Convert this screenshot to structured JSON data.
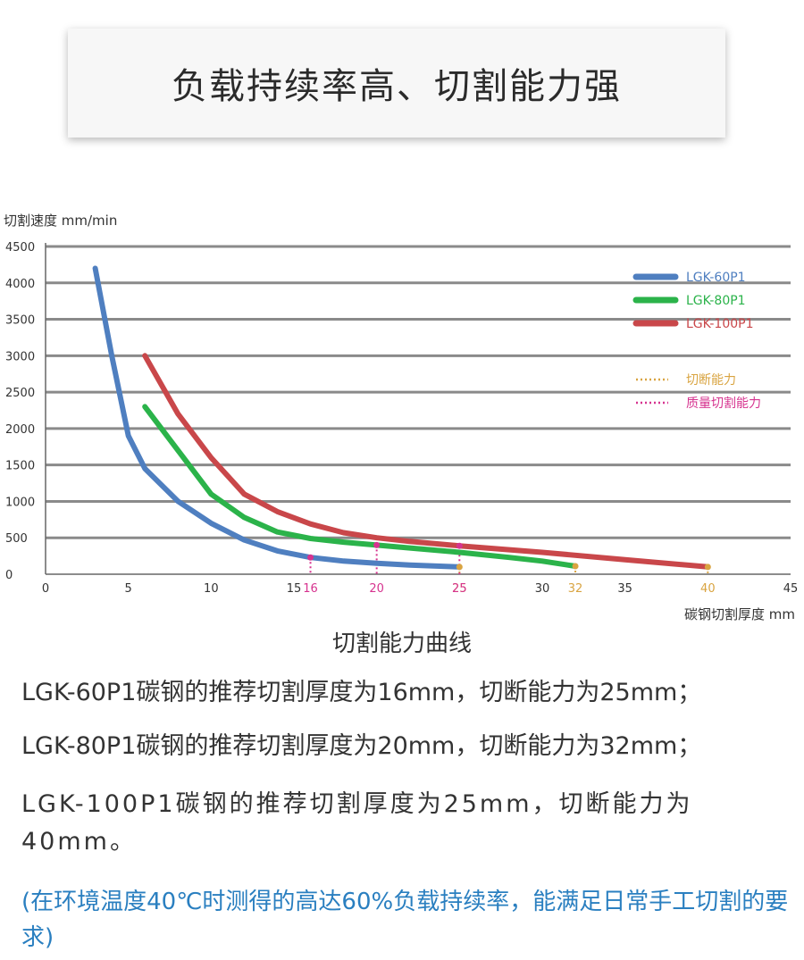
{
  "page_title": "负载持续率高、切割能力强",
  "chart_data": {
    "type": "line",
    "title": "切割能力曲线",
    "xlabel": "碳钢切割厚度 mm",
    "ylabel": "切割速度 mm/min",
    "xlim": [
      0,
      45
    ],
    "ylim": [
      0,
      4500
    ],
    "x_ticks": [
      0,
      5,
      10,
      15,
      30,
      35,
      45
    ],
    "y_ticks": [
      0,
      500,
      1000,
      1500,
      2000,
      2500,
      3000,
      3500,
      4000,
      4500
    ],
    "grid": "horizontal",
    "legend_position": "top-right",
    "series": [
      {
        "name": "LGK-60P1",
        "color": "#4f7fc0",
        "points": [
          [
            3,
            4200
          ],
          [
            4,
            3000
          ],
          [
            5,
            1900
          ],
          [
            6,
            1450
          ],
          [
            8,
            1000
          ],
          [
            10,
            700
          ],
          [
            12,
            470
          ],
          [
            14,
            320
          ],
          [
            16,
            230
          ],
          [
            18,
            180
          ],
          [
            20,
            150
          ],
          [
            22,
            125
          ],
          [
            25,
            100
          ]
        ]
      },
      {
        "name": "LGK-80P1",
        "color": "#2bb34a",
        "points": [
          [
            6,
            2300
          ],
          [
            8,
            1700
          ],
          [
            10,
            1100
          ],
          [
            12,
            780
          ],
          [
            14,
            580
          ],
          [
            16,
            490
          ],
          [
            18,
            440
          ],
          [
            20,
            400
          ],
          [
            22,
            360
          ],
          [
            25,
            300
          ],
          [
            28,
            230
          ],
          [
            30,
            180
          ],
          [
            32,
            110
          ]
        ]
      },
      {
        "name": "LGK-100P1",
        "color": "#c9474a",
        "points": [
          [
            6,
            3000
          ],
          [
            8,
            2200
          ],
          [
            10,
            1600
          ],
          [
            12,
            1100
          ],
          [
            14,
            860
          ],
          [
            16,
            690
          ],
          [
            18,
            570
          ],
          [
            20,
            500
          ],
          [
            22,
            450
          ],
          [
            25,
            390
          ],
          [
            30,
            300
          ],
          [
            35,
            200
          ],
          [
            40,
            100
          ]
        ]
      }
    ],
    "cut_off_capacity": {
      "label": "切断能力",
      "color": "#d9a441",
      "markers": [
        {
          "x": 25,
          "y": 100
        },
        {
          "x": 32,
          "y": 110
        },
        {
          "x": 40,
          "y": 100
        }
      ]
    },
    "quality_cut_capacity": {
      "label": "质量切割能力",
      "color": "#d6338f",
      "markers": [
        {
          "x": 16,
          "y": 230
        },
        {
          "x": 20,
          "y": 400
        },
        {
          "x": 25,
          "y": 390
        }
      ]
    }
  },
  "notes": {
    "line1": "LGK-60P1碳钢的推荐切割厚度为16mm，切断能力为25mm；",
    "line2": "LGK-80P1碳钢的推荐切割厚度为20mm，切断能力为32mm；",
    "line3": "LGK-100P1碳钢的推荐切割厚度为25mm，切断能力为40mm。",
    "footnote": "(在环境温度40℃时测得的高达60%负载持续率，能满足日常手工切割的要求)"
  }
}
